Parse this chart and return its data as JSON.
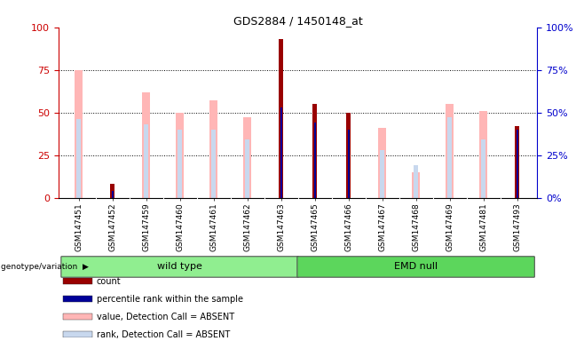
{
  "title": "GDS2884 / 1450148_at",
  "samples": [
    "GSM147451",
    "GSM147452",
    "GSM147459",
    "GSM147460",
    "GSM147461",
    "GSM147462",
    "GSM147463",
    "GSM147465",
    "GSM147466",
    "GSM147467",
    "GSM147468",
    "GSM147469",
    "GSM147481",
    "GSM147493"
  ],
  "count": [
    0,
    8,
    0,
    0,
    0,
    0,
    93,
    55,
    50,
    0,
    0,
    0,
    0,
    42
  ],
  "percentile_rank": [
    0,
    4,
    0,
    0,
    0,
    0,
    53,
    44,
    40,
    0,
    0,
    0,
    0,
    40
  ],
  "value_absent": [
    75,
    0,
    62,
    50,
    57,
    47,
    0,
    0,
    0,
    41,
    15,
    55,
    51,
    0
  ],
  "rank_absent": [
    46,
    0,
    43,
    40,
    40,
    34,
    0,
    0,
    0,
    28,
    19,
    47,
    34,
    0
  ],
  "groups": [
    {
      "label": "wild type",
      "start": 0,
      "end": 7,
      "color": "#90ee90"
    },
    {
      "label": "EMD null",
      "start": 7,
      "end": 14,
      "color": "#5cd65c"
    }
  ],
  "ylim": [
    0,
    100
  ],
  "yticks": [
    0,
    25,
    50,
    75,
    100
  ],
  "count_color": "#990000",
  "percentile_color": "#000099",
  "value_absent_color": "#ffb6b6",
  "rank_absent_color": "#c8d8ee",
  "axis_left_color": "#cc0000",
  "axis_right_color": "#0000cc",
  "background_color": "#ffffff",
  "xtick_bg_color": "#d0d0d0",
  "legend_items": [
    {
      "label": "count",
      "color": "#990000"
    },
    {
      "label": "percentile rank within the sample",
      "color": "#000099"
    },
    {
      "label": "value, Detection Call = ABSENT",
      "color": "#ffb6b6"
    },
    {
      "label": "rank, Detection Call = ABSENT",
      "color": "#c8d8ee"
    }
  ]
}
